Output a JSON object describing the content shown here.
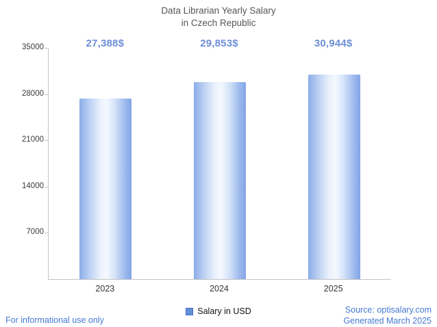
{
  "title": {
    "line1": "Data Librarian Yearly Salary",
    "line2": "in Czech Republic"
  },
  "chart_data": {
    "type": "bar",
    "title": "Data Librarian Yearly Salary in Czech Republic",
    "categories": [
      "2023",
      "2024",
      "2025"
    ],
    "values": [
      27388,
      29853,
      30944
    ],
    "value_labels": [
      "27,388$",
      "29,853$",
      "30,944$"
    ],
    "xlabel": "",
    "ylabel": "",
    "ylim": [
      0,
      35000
    ],
    "yticks": [
      7000,
      14000,
      21000,
      28000,
      35000
    ],
    "grid": false,
    "legend": [
      "Salary in USD"
    ],
    "legend_label": "Salary in USD",
    "legend_position": "bottom",
    "bar_color": "#82a5e5",
    "bar_highlight_color": "#f4f9ff",
    "value_label_color": "#6d8ed6",
    "footer_link_color": "#4679d4"
  },
  "footer": {
    "left": "For informational use only",
    "source": "Source: optisalary.com",
    "generated": "Generated March 2025"
  }
}
